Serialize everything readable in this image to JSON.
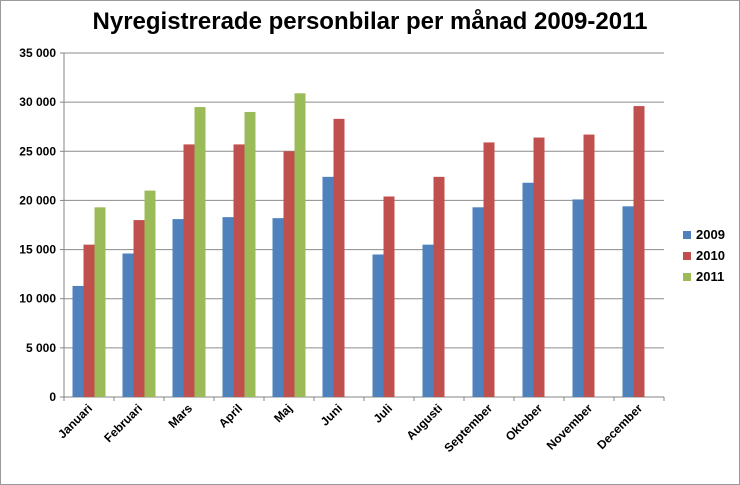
{
  "chart_data": {
    "type": "bar",
    "title": "Nyregistrerade personbilar per månad 2009-2011",
    "xlabel": "",
    "ylabel": "",
    "ylim": [
      0,
      35000
    ],
    "yticks": [
      "0",
      "5 000",
      "10 000",
      "15 000",
      "20 000",
      "25 000",
      "30 000",
      "35 000"
    ],
    "ytick_values": [
      0,
      5000,
      10000,
      15000,
      20000,
      25000,
      30000,
      35000
    ],
    "grid": true,
    "legend_position": "right",
    "categories": [
      "Januari",
      "Februari",
      "Mars",
      "April",
      "Maj",
      "Juni",
      "Juli",
      "Augusti",
      "September",
      "Oktober",
      "November",
      "December"
    ],
    "series": [
      {
        "name": "2009",
        "color": "#4f81bd",
        "values": [
          11300,
          14600,
          18100,
          18300,
          18200,
          22400,
          14500,
          15500,
          19300,
          21800,
          20100,
          19400
        ]
      },
      {
        "name": "2010",
        "color": "#c0504d",
        "values": [
          15500,
          18000,
          25700,
          25700,
          25000,
          28300,
          20400,
          22400,
          25900,
          26400,
          26700,
          29600
        ]
      },
      {
        "name": "2011",
        "color": "#9bbb59",
        "values": [
          19300,
          21000,
          29500,
          29000,
          30900,
          null,
          null,
          null,
          null,
          null,
          null,
          null
        ]
      }
    ]
  }
}
